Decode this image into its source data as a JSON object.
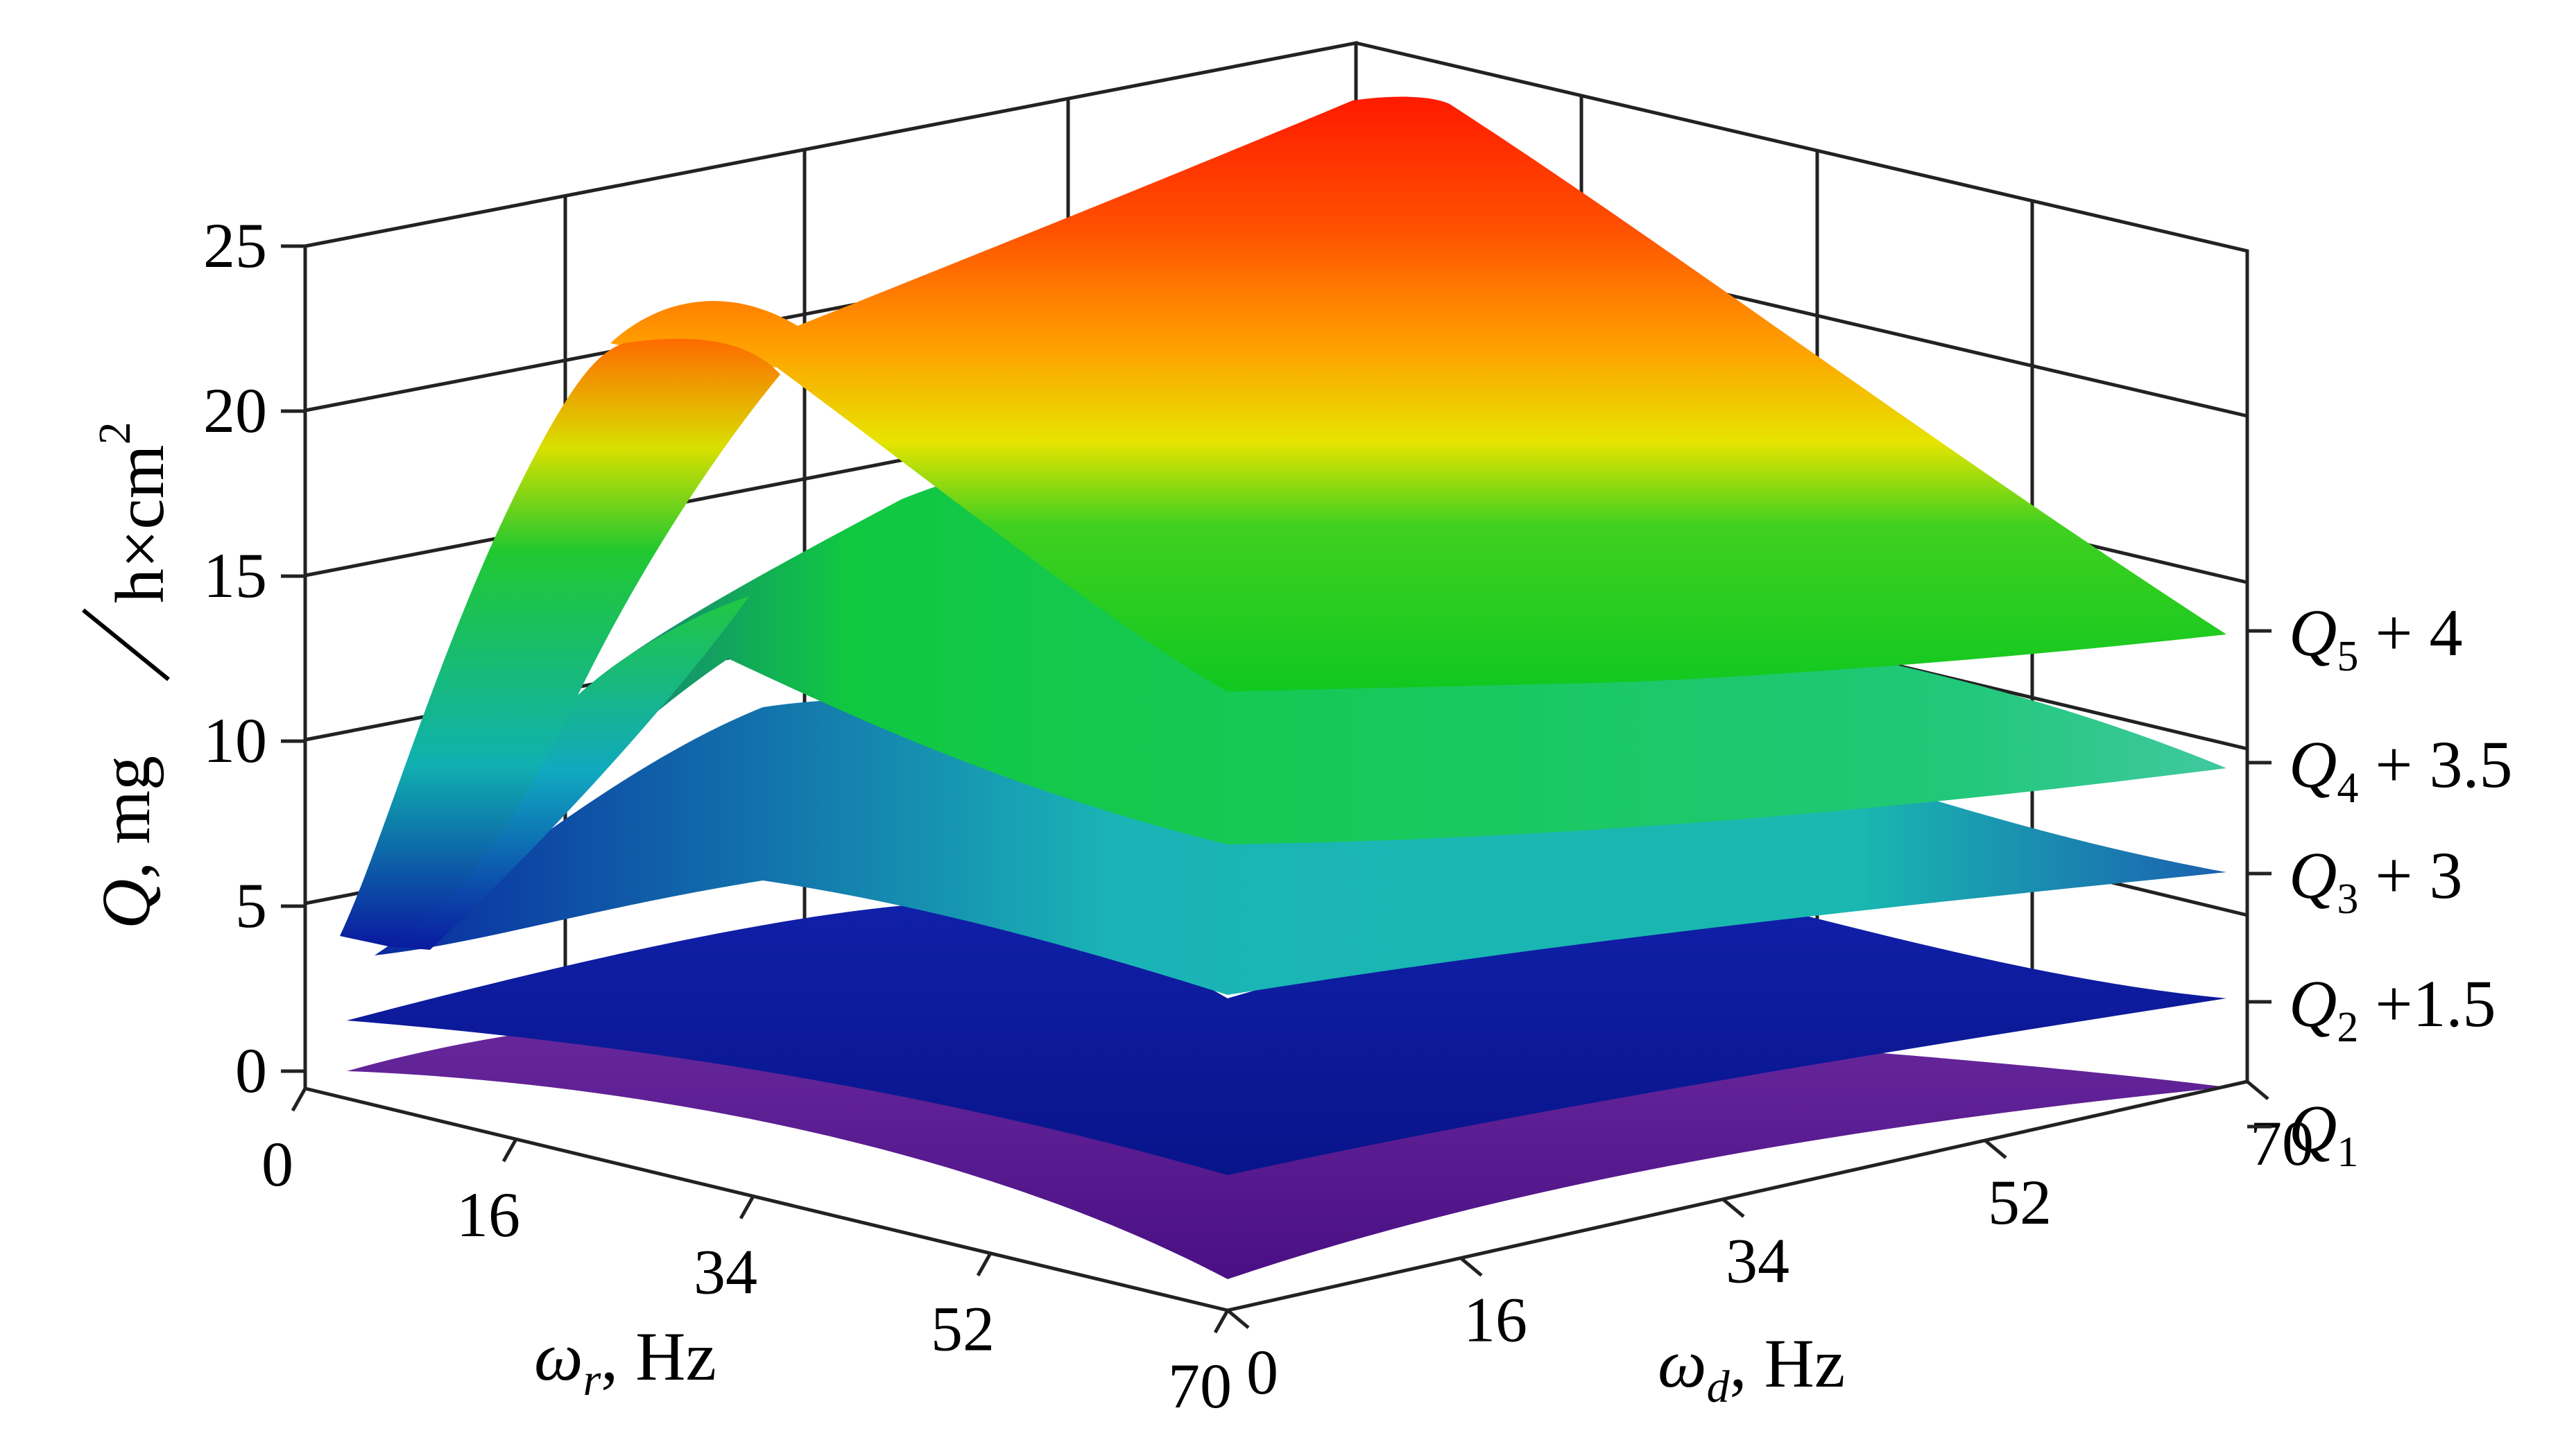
{
  "chart_data": {
    "type": "surface3d",
    "x_axis": {
      "label_symbol": "ω",
      "label_subscript": "r",
      "label_unit": ", Hz",
      "ticks": [
        0,
        16,
        34,
        52,
        70
      ],
      "range": [
        0,
        70
      ]
    },
    "y_axis": {
      "label_symbol": "ω",
      "label_subscript": "d",
      "label_unit": ", Hz",
      "ticks": [
        0,
        16,
        34,
        52,
        70
      ],
      "range": [
        0,
        70
      ]
    },
    "z_axis": {
      "label_symbol": "Q",
      "label_unit": ", mg",
      "label_denominator": "h×cm",
      "label_power": "2",
      "ticks": [
        0,
        5,
        10,
        15,
        20,
        25
      ],
      "range": [
        0,
        25
      ]
    },
    "grid": true,
    "series": [
      {
        "name": "Q1",
        "symbol": "Q",
        "subscript": "1",
        "suffix": "",
        "offset": 0,
        "color": "#5a1a8c",
        "corners": {
          "wr0_wd0": 0.2,
          "wr70_wd0": -0.8,
          "wr0_wd70": 1.2,
          "wr70_wd70": 0.9
        }
      },
      {
        "name": "Q2 +1.5",
        "symbol": "Q",
        "subscript": "2",
        "suffix": " +1.5",
        "offset": 1.5,
        "color": "#0a1a9a",
        "corners": {
          "wr0_wd0": 1.6,
          "wr70_wd0": 0.8,
          "wr0_wd70": 4.4,
          "wr70_wd70": 3.6
        }
      },
      {
        "name": "Q3 + 3",
        "symbol": "Q",
        "subscript": "3",
        "suffix": " + 3",
        "offset": 3,
        "color": "#1ab0b8",
        "corners": {
          "wr0_wd0": 3.2,
          "wr70_wd0": 3.5,
          "wr0_wd70": 9.0,
          "wr70_wd70": 6.5
        }
      },
      {
        "name": "Q4 + 3.5",
        "symbol": "Q",
        "subscript": "4",
        "suffix": " + 3.5",
        "offset": 3.5,
        "color": "#18c868",
        "corners": {
          "wr0_wd0": 3.8,
          "wr70_wd0": 6.5,
          "wr0_wd70": 13.5,
          "wr70_wd70": 9.5
        }
      },
      {
        "name": "Q5 + 4",
        "symbol": "Q",
        "subscript": "5",
        "suffix": " + 4",
        "offset": 4,
        "color": "#ff2a10",
        "corners": {
          "wr0_wd0": 4.2,
          "wr70_wd0": 11.5,
          "wr0_wd70": 23.8,
          "wr70_wd70": 13.0
        }
      }
    ]
  }
}
